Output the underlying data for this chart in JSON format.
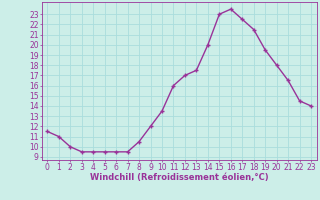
{
  "x": [
    0,
    1,
    2,
    3,
    4,
    5,
    6,
    7,
    8,
    9,
    10,
    11,
    12,
    13,
    14,
    15,
    16,
    17,
    18,
    19,
    20,
    21,
    22,
    23
  ],
  "y": [
    11.5,
    11.0,
    10.0,
    9.5,
    9.5,
    9.5,
    9.5,
    9.5,
    10.5,
    12.0,
    13.5,
    16.0,
    17.0,
    17.5,
    20.0,
    23.0,
    23.5,
    22.5,
    21.5,
    19.5,
    18.0,
    16.5,
    14.5,
    14.0
  ],
  "line_color": "#993399",
  "marker": "+",
  "bg_color": "#cceee8",
  "grid_color": "#aadddd",
  "axis_label_color": "#993399",
  "tick_color": "#993399",
  "xlabel": "Windchill (Refroidissement éolien,°C)",
  "xlim": [
    -0.5,
    23.5
  ],
  "ylim": [
    8.7,
    24.2
  ],
  "yticks": [
    9,
    10,
    11,
    12,
    13,
    14,
    15,
    16,
    17,
    18,
    19,
    20,
    21,
    22,
    23
  ],
  "xticks": [
    0,
    1,
    2,
    3,
    4,
    5,
    6,
    7,
    8,
    9,
    10,
    11,
    12,
    13,
    14,
    15,
    16,
    17,
    18,
    19,
    20,
    21,
    22,
    23
  ],
  "tick_fontsize": 5.5,
  "xlabel_fontsize": 6.0,
  "linewidth": 1.0,
  "markersize": 3.5,
  "markeredgewidth": 1.0
}
